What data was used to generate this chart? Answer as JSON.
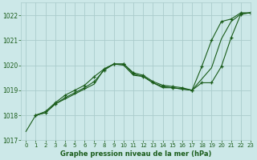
{
  "title": "Graphe pression niveau de la mer (hPa)",
  "background_color": "#cce8e8",
  "grid_color": "#aacccc",
  "line_color": "#1a5c1a",
  "marker_color": "#1a5c1a",
  "xlim": [
    -0.5,
    23
  ],
  "ylim": [
    1017.0,
    1022.5
  ],
  "yticks": [
    1017,
    1018,
    1019,
    1020,
    1021,
    1022
  ],
  "xticks": [
    0,
    1,
    2,
    3,
    4,
    5,
    6,
    7,
    8,
    9,
    10,
    11,
    12,
    13,
    14,
    15,
    16,
    17,
    18,
    19,
    20,
    21,
    22,
    23
  ],
  "figsize": [
    3.2,
    2.0
  ],
  "dpi": 100,
  "series": [
    {
      "x": [
        0,
        1,
        2,
        3,
        4,
        5,
        6,
        7,
        8,
        9,
        10,
        11,
        12,
        13,
        14,
        15,
        16,
        17,
        18,
        19,
        20,
        21,
        22,
        23
      ],
      "y": [
        1017.35,
        1018.0,
        1018.1,
        1018.45,
        1018.65,
        1018.85,
        1019.05,
        1019.25,
        1019.85,
        1020.05,
        1020.0,
        1019.6,
        1019.55,
        1019.3,
        1019.1,
        1019.1,
        1019.05,
        1019.0,
        1019.45,
        1019.9,
        1021.05,
        1021.75,
        1022.05,
        1022.1
      ],
      "has_markers": false
    },
    {
      "x": [
        1,
        2,
        3,
        4,
        5,
        6,
        7,
        8,
        9,
        10,
        11,
        12,
        13,
        14,
        15,
        16,
        17,
        18,
        19,
        20,
        21,
        22,
        23
      ],
      "y": [
        1018.0,
        1018.15,
        1018.5,
        1018.8,
        1019.0,
        1019.2,
        1019.55,
        1019.85,
        1020.05,
        1020.05,
        1019.7,
        1019.6,
        1019.35,
        1019.2,
        1019.15,
        1019.1,
        1019.0,
        1019.95,
        1021.0,
        1021.75,
        1021.85,
        1022.1,
        1022.1
      ],
      "has_markers": true
    },
    {
      "x": [
        1,
        2,
        3,
        4,
        5,
        6,
        7,
        8,
        9,
        10,
        11,
        12,
        13,
        14,
        15,
        16,
        17,
        18,
        19,
        20,
        21,
        22,
        23
      ],
      "y": [
        1018.0,
        1018.1,
        1018.45,
        1018.7,
        1018.9,
        1019.1,
        1019.35,
        1019.8,
        1020.05,
        1020.05,
        1019.65,
        1019.55,
        1019.3,
        1019.15,
        1019.1,
        1019.05,
        1019.0,
        1019.3,
        1019.3,
        1019.95,
        1021.1,
        1022.05,
        1022.1
      ],
      "has_markers": true
    }
  ]
}
